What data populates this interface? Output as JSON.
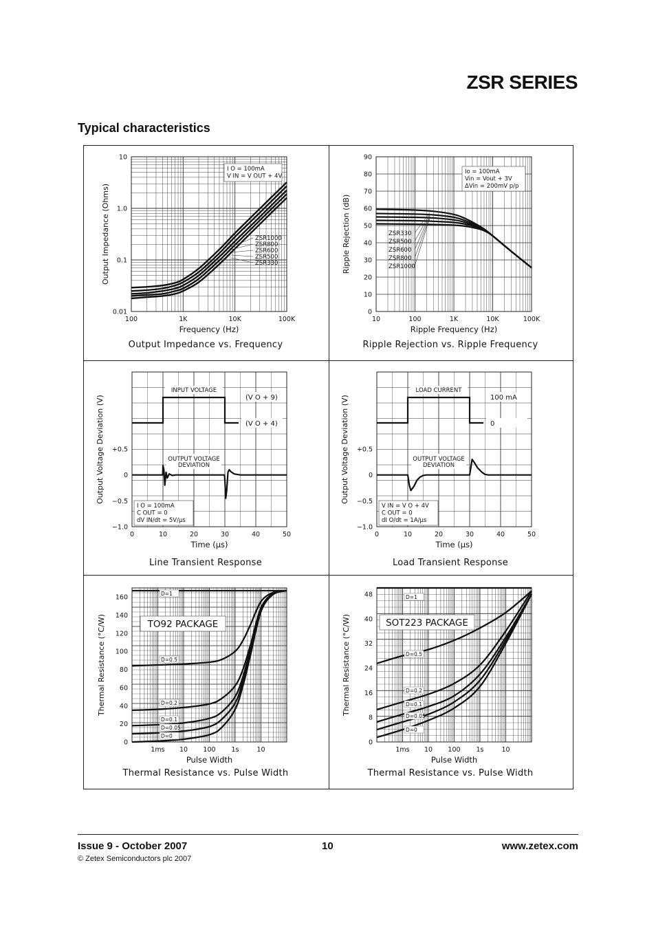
{
  "header": {
    "series_title": "ZSR SERIES",
    "section_title": "Typical characteristics"
  },
  "footer": {
    "issue": "Issue 9 - October 2007",
    "page": "10",
    "website": "www.zetex.com",
    "copyright": "© Zetex Semiconductors plc 2007"
  },
  "chart_data": [
    {
      "id": "impedance",
      "type": "line",
      "title": "Output Impedance vs. Frequency",
      "xlabel": "Frequency (Hz)",
      "ylabel": "Output Impedance (Ohms)",
      "xscale": "log",
      "yscale": "log",
      "xlim": [
        100,
        100000
      ],
      "ylim": [
        0.01,
        10
      ],
      "xticks": [
        [
          "100",
          100
        ],
        [
          "1K",
          1000
        ],
        [
          "10K",
          10000
        ],
        [
          "100K",
          100000
        ]
      ],
      "yticks": [
        [
          "10",
          10
        ],
        [
          "1.0",
          1
        ],
        [
          "0.1",
          0.1
        ],
        [
          "0.01",
          0.01
        ]
      ],
      "conditions": [
        "I O = 100mA",
        "V IN = V OUT + 4V"
      ],
      "legend": [
        "ZSR1000",
        "ZSR800",
        "ZSR600",
        "ZSR500",
        "ZSR330"
      ],
      "grid": true,
      "series": [
        {
          "name": "ZSR1000",
          "x": [
            100,
            200,
            400,
            700,
            1000,
            2000,
            5000,
            10000,
            30000,
            100000
          ],
          "y": [
            0.029,
            0.03,
            0.032,
            0.036,
            0.042,
            0.068,
            0.16,
            0.33,
            0.98,
            3.2
          ]
        },
        {
          "name": "ZSR800",
          "x": [
            100,
            200,
            400,
            700,
            1000,
            2000,
            5000,
            10000,
            30000,
            100000
          ],
          "y": [
            0.025,
            0.026,
            0.028,
            0.032,
            0.037,
            0.058,
            0.135,
            0.28,
            0.82,
            2.7
          ]
        },
        {
          "name": "ZSR600",
          "x": [
            100,
            200,
            400,
            700,
            1000,
            2000,
            5000,
            10000,
            30000,
            100000
          ],
          "y": [
            0.022,
            0.023,
            0.025,
            0.028,
            0.032,
            0.05,
            0.115,
            0.23,
            0.68,
            2.25
          ]
        },
        {
          "name": "ZSR500",
          "x": [
            100,
            200,
            400,
            700,
            1000,
            2000,
            5000,
            10000,
            30000,
            100000
          ],
          "y": [
            0.02,
            0.021,
            0.022,
            0.025,
            0.028,
            0.043,
            0.098,
            0.195,
            0.58,
            1.9
          ]
        },
        {
          "name": "ZSR330",
          "x": [
            100,
            200,
            400,
            700,
            1000,
            2000,
            5000,
            10000,
            30000,
            100000
          ],
          "y": [
            0.018,
            0.019,
            0.02,
            0.022,
            0.025,
            0.037,
            0.083,
            0.165,
            0.49,
            1.6
          ]
        }
      ]
    },
    {
      "id": "ripple",
      "type": "line",
      "title": "Ripple Rejection vs. Ripple Frequency",
      "xlabel": "Ripple Frequency (Hz)",
      "ylabel": "Ripple Rejection (dB)",
      "xscale": "log",
      "xlim": [
        10,
        100000
      ],
      "ylim": [
        0,
        90
      ],
      "xticks": [
        [
          "10",
          10
        ],
        [
          "100",
          100
        ],
        [
          "1K",
          1000
        ],
        [
          "10K",
          10000
        ],
        [
          "100K",
          100000
        ]
      ],
      "yticks": [
        [
          "0",
          0
        ],
        [
          "10",
          10
        ],
        [
          "20",
          20
        ],
        [
          "30",
          30
        ],
        [
          "40",
          40
        ],
        [
          "50",
          50
        ],
        [
          "60",
          60
        ],
        [
          "70",
          70
        ],
        [
          "80",
          80
        ],
        [
          "90",
          90
        ]
      ],
      "conditions": [
        "Io = 100mA",
        "Vin = Vout + 3V",
        "ΔVin = 200mV p/p"
      ],
      "legend": [
        "ZSR330",
        "ZSR500",
        "ZSR600",
        "ZSR800",
        "ZSR1000"
      ],
      "grid": true,
      "series": [
        {
          "name": "ZSR330",
          "x": [
            10,
            100,
            300,
            1000,
            2000,
            4000,
            6000,
            10000,
            30000,
            100000
          ],
          "y": [
            59.5,
            59,
            58.3,
            56.5,
            54,
            50.5,
            48,
            44,
            35,
            25.5
          ]
        },
        {
          "name": "ZSR500",
          "x": [
            10,
            100,
            300,
            1000,
            2000,
            4000,
            6000,
            10000,
            30000,
            100000
          ],
          "y": [
            57,
            56.7,
            56.2,
            54.8,
            52.8,
            50,
            48,
            44,
            35,
            25.5
          ]
        },
        {
          "name": "ZSR600",
          "x": [
            10,
            100,
            300,
            1000,
            2000,
            4000,
            6000,
            10000,
            30000,
            100000
          ],
          "y": [
            55,
            54.8,
            54.4,
            53.3,
            51.8,
            49.5,
            47.8,
            44,
            35,
            25.5
          ]
        },
        {
          "name": "ZSR800",
          "x": [
            10,
            100,
            300,
            1000,
            2000,
            4000,
            6000,
            10000,
            30000,
            100000
          ],
          "y": [
            53,
            52.8,
            52.5,
            51.8,
            50.8,
            49,
            47.5,
            44,
            35,
            25.5
          ]
        },
        {
          "name": "ZSR1000",
          "x": [
            10,
            100,
            300,
            1000,
            2000,
            4000,
            6000,
            10000,
            30000,
            100000
          ],
          "y": [
            51,
            50.8,
            50.6,
            50.2,
            49.6,
            48.3,
            47,
            44,
            35,
            25.5
          ]
        }
      ]
    },
    {
      "id": "line_transient",
      "type": "line",
      "title": "Line Transient Response",
      "xlabel": "Time (µs)",
      "ylabel": "Output Voltage Deviation (V)",
      "xlim": [
        0,
        50
      ],
      "ylim": [
        -1.0,
        0.5
      ],
      "xticks": [
        [
          "0",
          0
        ],
        [
          "10",
          10
        ],
        [
          "20",
          20
        ],
        [
          "30",
          30
        ],
        [
          "40",
          40
        ],
        [
          "50",
          50
        ]
      ],
      "yticks": [
        [
          "+0.5",
          0.5
        ],
        [
          "0",
          0
        ],
        [
          "−0.5",
          -0.5
        ],
        [
          "−1.0",
          -1.0
        ]
      ],
      "pulse_label": "INPUT VOLTAGE",
      "pulse_high": "(V O + 9)",
      "pulse_low": "(V O + 4)",
      "pulse_edges": [
        10,
        30
      ],
      "deviation_label": [
        "OUTPUT VOLTAGE",
        "DEVIATION"
      ],
      "conditions": [
        "I O = 100mA",
        "C OUT = 0",
        "dV IN/dt = 5V/µs"
      ],
      "grid": true,
      "series": [
        {
          "name": "",
          "x": [
            0,
            9.9,
            10,
            10.3,
            10.6,
            11,
            11.4,
            12,
            13,
            14,
            29.9,
            30,
            30.3,
            30.6,
            31,
            31.4,
            32,
            33,
            34,
            35,
            50
          ],
          "y": [
            0,
            0,
            0.18,
            0.1,
            -0.2,
            0.05,
            -0.06,
            0.02,
            -0.01,
            0,
            0,
            -0.1,
            -0.45,
            -0.3,
            0.05,
            0.1,
            0.06,
            0.02,
            0.01,
            0,
            0
          ]
        }
      ]
    },
    {
      "id": "load_transient",
      "type": "line",
      "title": "Load Transient Response",
      "xlabel": "Time (µs)",
      "ylabel": "Output Voltage Deviation (V)",
      "xlim": [
        0,
        50
      ],
      "ylim": [
        -1.0,
        0.5
      ],
      "xticks": [
        [
          "0",
          0
        ],
        [
          "10",
          10
        ],
        [
          "20",
          20
        ],
        [
          "30",
          30
        ],
        [
          "40",
          40
        ],
        [
          "50",
          50
        ]
      ],
      "yticks": [
        [
          "+0.5",
          0.5
        ],
        [
          "0",
          0
        ],
        [
          "−0.5",
          -0.5
        ],
        [
          "−1.0",
          -1.0
        ]
      ],
      "pulse_label": "LOAD CURRENT",
      "pulse_high": "100 mA",
      "pulse_low": "0",
      "pulse_edges": [
        10,
        30
      ],
      "deviation_label": [
        "OUTPUT VOLTAGE",
        "DEVIATION"
      ],
      "conditions": [
        "V IN = V O + 4V",
        "C OUT = 0",
        "dI O/dt = 1A/µs"
      ],
      "grid": true,
      "series": [
        {
          "name": "",
          "x": [
            0,
            10,
            10.5,
            11,
            12,
            13,
            14,
            15,
            16,
            30,
            30.4,
            30.8,
            31.5,
            32.5,
            34,
            35,
            36,
            50
          ],
          "y": [
            0,
            0,
            -0.2,
            -0.3,
            -0.22,
            -0.1,
            -0.04,
            -0.01,
            0,
            0,
            0.15,
            0.3,
            0.24,
            0.14,
            0.05,
            0.01,
            0,
            0
          ]
        }
      ]
    },
    {
      "id": "thermal_to92",
      "type": "line",
      "title": "Thermal Resistance vs. Pulse Width",
      "xlabel": "Pulse Width",
      "ylabel": "Thermal Resistance (°C/W)",
      "xscale": "log",
      "xlim": [
        0.0001,
        100
      ],
      "ylim": [
        0,
        170
      ],
      "xticks": [
        [
          "1ms",
          0.001
        ],
        [
          "10",
          0.01
        ],
        [
          "100",
          0.1
        ],
        [
          "1s",
          1
        ],
        [
          "10",
          10
        ]
      ],
      "yticks": [
        [
          "0",
          0
        ],
        [
          "20",
          20
        ],
        [
          "40",
          40
        ],
        [
          "60",
          60
        ],
        [
          "80",
          80
        ],
        [
          "100",
          100
        ],
        [
          "120",
          120
        ],
        [
          "140",
          140
        ],
        [
          "160",
          160
        ]
      ],
      "package_label": "TO92 PACKAGE",
      "grid": true,
      "series": [
        {
          "name": "D=1",
          "x": [
            0.0001,
            100
          ],
          "y": [
            167,
            167
          ]
        },
        {
          "name": "D=0.5",
          "x": [
            0.0001,
            0.001,
            0.01,
            0.1,
            0.3,
            1,
            2,
            4,
            10,
            30,
            100
          ],
          "y": [
            84,
            85,
            86,
            88,
            91,
            100,
            112,
            130,
            155,
            165,
            167
          ]
        },
        {
          "name": "D=0.2",
          "x": [
            0.0001,
            0.001,
            0.01,
            0.1,
            0.3,
            1,
            2,
            4,
            10,
            30,
            100
          ],
          "y": [
            35,
            36,
            38,
            42,
            48,
            62,
            80,
            108,
            148,
            164,
            167
          ]
        },
        {
          "name": "D=0.1",
          "x": [
            0.0001,
            0.001,
            0.01,
            0.1,
            0.3,
            1,
            2,
            4,
            10,
            30,
            100
          ],
          "y": [
            18,
            19,
            21,
            26,
            33,
            50,
            72,
            103,
            146,
            164,
            167
          ]
        },
        {
          "name": "D=0.05",
          "x": [
            0.0001,
            0.001,
            0.01,
            0.1,
            0.3,
            1,
            2,
            4,
            10,
            30,
            100
          ],
          "y": [
            9,
            10,
            12,
            17,
            25,
            43,
            67,
            100,
            145,
            163,
            167
          ]
        },
        {
          "name": "D=0",
          "x": [
            0.0001,
            0.001,
            0.01,
            0.1,
            0.3,
            1,
            2,
            4,
            10,
            30,
            100
          ],
          "y": [
            0,
            1,
            3,
            8,
            16,
            36,
            62,
            97,
            144,
            163,
            167
          ]
        }
      ]
    },
    {
      "id": "thermal_sot223",
      "type": "line",
      "title": "Thermal Resistance vs. Pulse Width",
      "xlabel": "Pulse Width",
      "ylabel": "Thermal Resistance (°C/W)",
      "xscale": "log",
      "xlim": [
        0.0001,
        100
      ],
      "ylim": [
        0,
        50
      ],
      "xticks": [
        [
          "1ms",
          0.001
        ],
        [
          "10",
          0.01
        ],
        [
          "100",
          0.1
        ],
        [
          "1s",
          1
        ],
        [
          "10",
          10
        ]
      ],
      "yticks": [
        [
          "0",
          0
        ],
        [
          "8",
          8
        ],
        [
          "16",
          16
        ],
        [
          "24",
          24
        ],
        [
          "32",
          32
        ],
        [
          "40",
          40
        ],
        [
          "48",
          48
        ]
      ],
      "package_label": "SOT223 PACKAGE",
      "grid": true,
      "series": [
        {
          "name": "D=1",
          "x": [
            0.0001,
            100
          ],
          "y": [
            50,
            50
          ]
        },
        {
          "name": "D=0.5",
          "x": [
            0.0001,
            0.001,
            0.01,
            0.1,
            1,
            10,
            100
          ],
          "y": [
            25.5,
            28,
            30,
            33,
            37,
            42,
            49
          ]
        },
        {
          "name": "D=0.2",
          "x": [
            0.0001,
            0.001,
            0.01,
            0.1,
            1,
            10,
            100
          ],
          "y": [
            10.5,
            13,
            15.5,
            19,
            25,
            36,
            49
          ]
        },
        {
          "name": "D=0.1",
          "x": [
            0.0001,
            0.001,
            0.01,
            0.1,
            1,
            10,
            100
          ],
          "y": [
            6.5,
            9,
            11.5,
            15,
            22,
            34,
            48
          ]
        },
        {
          "name": "D=0.05",
          "x": [
            0.0001,
            0.001,
            0.01,
            0.1,
            1,
            10,
            100
          ],
          "y": [
            4,
            6.5,
            9,
            13,
            20,
            33,
            48
          ]
        },
        {
          "name": "D=0",
          "x": [
            0.0001,
            0.001,
            0.01,
            0.1,
            1,
            10,
            100
          ],
          "y": [
            1.5,
            4,
            7,
            11,
            18,
            32,
            48
          ]
        }
      ]
    }
  ]
}
